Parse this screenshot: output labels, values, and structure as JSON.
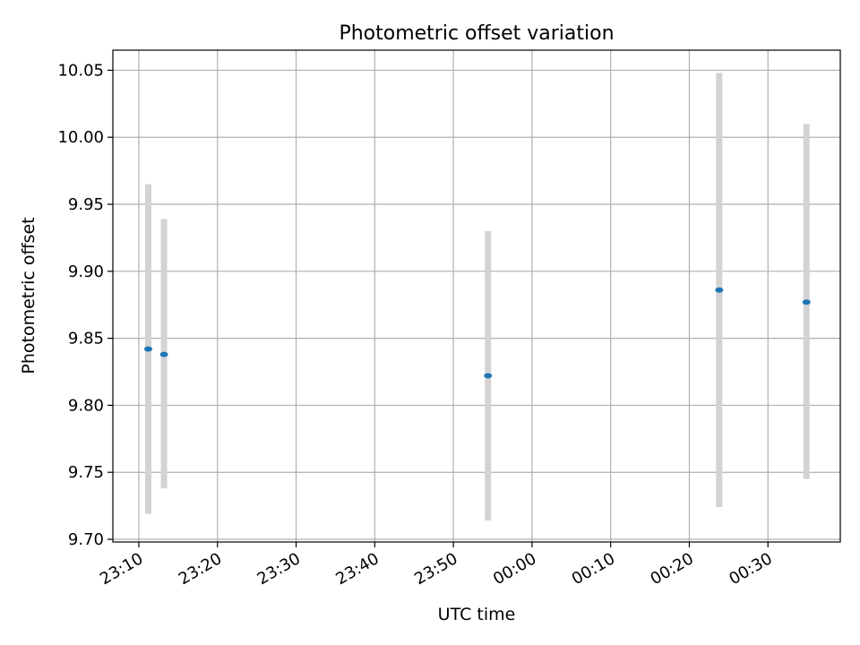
{
  "chart_data": {
    "type": "scatter",
    "title": "Photometric offset variation",
    "xlabel": "UTC time",
    "ylabel": "Photometric offset",
    "x_unit": "minutes",
    "x_ticks": [
      {
        "value": 0,
        "label": "23:10"
      },
      {
        "value": 10,
        "label": "23:20"
      },
      {
        "value": 20,
        "label": "23:30"
      },
      {
        "value": 30,
        "label": "23:40"
      },
      {
        "value": 40,
        "label": "23:50"
      },
      {
        "value": 50,
        "label": "00:00"
      },
      {
        "value": 60,
        "label": "00:10"
      },
      {
        "value": 70,
        "label": "00:20"
      },
      {
        "value": 80,
        "label": "00:30"
      }
    ],
    "y_ticks": [
      9.7,
      9.75,
      9.8,
      9.85,
      9.9,
      9.95,
      10.0,
      10.05
    ],
    "xlim": [
      -3.3,
      89.2
    ],
    "ylim": [
      9.698,
      10.065
    ],
    "grid": true,
    "point_color": "#1f77b4",
    "errorbar_color": "#d3d3d3",
    "points": [
      {
        "time": "23:11:12",
        "x": 1.2,
        "y": 9.842,
        "low": 9.719,
        "high": 9.965
      },
      {
        "time": "23:13:12",
        "x": 3.2,
        "y": 9.838,
        "low": 9.738,
        "high": 9.939
      },
      {
        "time": "23:54:24",
        "x": 44.4,
        "y": 9.822,
        "low": 9.714,
        "high": 9.93
      },
      {
        "time": "00:23:48",
        "x": 73.8,
        "y": 9.886,
        "low": 9.724,
        "high": 10.048
      },
      {
        "time": "00:34:54",
        "x": 84.9,
        "y": 9.877,
        "low": 9.745,
        "high": 10.01
      }
    ]
  }
}
